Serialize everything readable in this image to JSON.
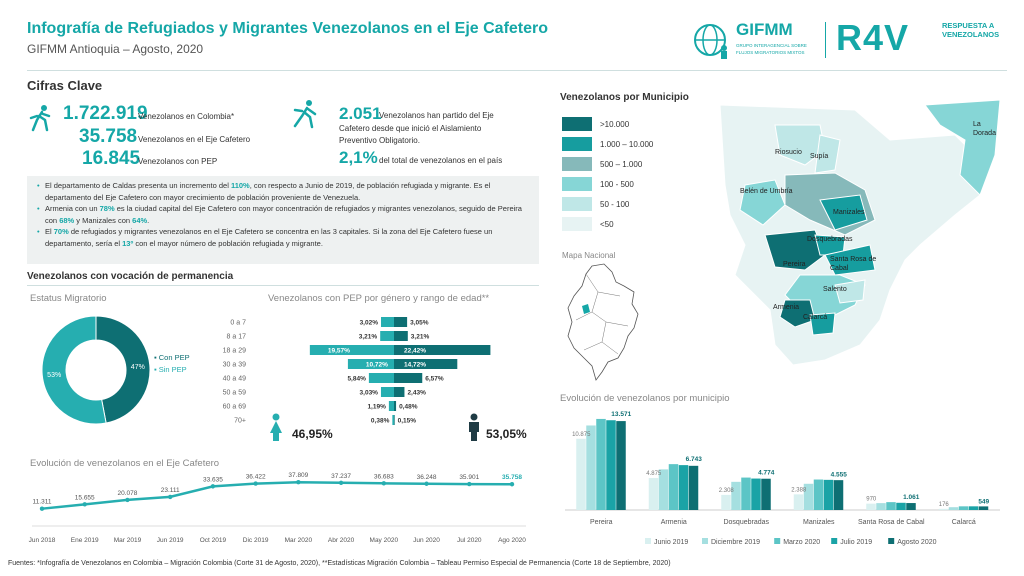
{
  "header": {
    "title": "Infografía de Refugiados y Migrantes Venezolanos en el Eje Cafetero",
    "subtitle": "GIFMM Antioquia – Agosto, 2020",
    "logo_gifmm": "GIFMM",
    "logo_gifmm_sub1": "GRUPO INTERAGENCIAL SOBRE",
    "logo_gifmm_sub2": "FLUJOS MIGRATORIOS MIXTOS",
    "logo_r4v": "R4V",
    "logo_r4v_side1": "RESPUESTA A",
    "logo_r4v_side2": "VENEZOLANOS"
  },
  "cifras": {
    "heading": "Cifras Clave",
    "colombia_value": "1.722.919",
    "colombia_label": "Venezolanos en Colombia*",
    "eje_value": "35.758",
    "eje_label": "Venezolanos en el Eje Cafetero",
    "pep_value": "16.845",
    "pep_label": "Venezolanos con PEP",
    "salida_value": "2.051",
    "salida_line1": "Venezolanos han partido del Eje",
    "salida_line2": "Cafetero desde que inició el Aislamiento",
    "salida_line3": "Preventivo Obligatorio.",
    "pct_value": "2,1%",
    "pct_label": "del total de venezolanos en el país"
  },
  "notes": {
    "n1a": "El departamento de Caldas presenta un incremento del ",
    "n1h": "110%",
    "n1b": ", con respecto a Junio de 2019, de población refugiada y migrante. Es el departamento del Eje Cafetero con mayor crecimiento de población proveniente de Venezuela.",
    "n2a": "Armenia con un ",
    "n2h1": "78%",
    "n2b": " es la ciudad capital del Eje Cafetero con mayor concentración de refugiados y migrantes venezolanos, seguido de Pereira con ",
    "n2h2": "68%",
    "n2c": " y Manizales con ",
    "n2h3": "64%",
    "n2d": ".",
    "n3a": "El ",
    "n3h1": "70%",
    "n3b": " de refugiados y migrantes venezolanos en el Eje Cafetero se concentra en las 3 capitales. Si la zona del Eje Cafetero fuese un departamento, sería el ",
    "n3h2": "13º",
    "n3c": " con el mayor número de población refugiada y migrante."
  },
  "permanencia": {
    "heading": "Venezolanos con vocación de permanencia",
    "estatus_title": "Estatus Migratorio",
    "pyramid_title": "Venezolanos con PEP por género y rango de edad**",
    "female_pct": "46,95%",
    "male_pct": "53,05%"
  },
  "map": {
    "heading": "Venezolanos por Municipio",
    "mapa_nacional": "Mapa Nacional",
    "legend": [
      {
        "label": ">10.000",
        "color": "#0e6f73"
      },
      {
        "label": "1.000 – 10.000",
        "color": "#169d9f"
      },
      {
        "label": "500 – 1.000",
        "color": "#86b9ba"
      },
      {
        "label": "100 - 500",
        "color": "#86d6d6"
      },
      {
        "label": "50 - 100",
        "color": "#bfe7e7"
      },
      {
        "label": "<50",
        "color": "#e7f3f3"
      }
    ],
    "places": [
      "La Dorada",
      "Riosucio",
      "Supía",
      "Belén de Umbría",
      "Manizales",
      "Dosquebradas",
      "Pereira",
      "Santa Rosa de Cabal",
      "Salento",
      "Armenia",
      "Calarcá"
    ]
  },
  "chart_data": [
    {
      "type": "pie",
      "title": "Estatus Migratorio",
      "categories": [
        "Con PEP",
        "Sin PEP"
      ],
      "values": [
        47,
        53
      ],
      "labels": [
        "47%",
        "53%"
      ],
      "colors": [
        "#0e6f73",
        "#26aeb0"
      ],
      "legend": "right"
    },
    {
      "type": "bar",
      "title": "Venezolanos con PEP por género y rango de edad**",
      "categories": [
        "0 a 7",
        "8 a 17",
        "18 a 29",
        "30 a 39",
        "40 a 49",
        "50 a 59",
        "60 a 69",
        "70+"
      ],
      "series": [
        {
          "values": [
            3.02,
            3.21,
            19.57,
            10.72,
            5.84,
            3.03,
            1.19,
            0.38
          ],
          "labels": [
            "3,02%",
            "3,21%",
            "19,57%",
            "10,72%",
            "5,84%",
            "3,03%",
            "1,19%",
            "0,38%"
          ],
          "color": "#26aeb0"
        },
        {
          "values": [
            3.05,
            3.21,
            22.42,
            14.72,
            6.57,
            2.43,
            0.48,
            0.15
          ],
          "labels": [
            "3,05%",
            "3,21%",
            "22,42%",
            "14,72%",
            "6,57%",
            "2,43%",
            "0,48%",
            "0,15%"
          ],
          "color": "#0e6f73"
        }
      ]
    },
    {
      "type": "line",
      "title": "Evolución de venezolanos en el Eje Cafetero",
      "categories": [
        "Jun 2018",
        "Ene 2019",
        "Mar 2019",
        "Jun 2019",
        "Oct 2019",
        "Dic 2019",
        "Mar 2020",
        "Abr 2020",
        "May 2020",
        "Jun 2020",
        "Jul 2020",
        "Ago 2020"
      ],
      "values": [
        11311,
        15655,
        20078,
        23111,
        33635,
        36422,
        37809,
        37237,
        36683,
        36248,
        35901,
        35758
      ],
      "labels": [
        "11.311",
        "15.655",
        "20.078",
        "23.111",
        "33.635",
        "36.422",
        "37.809",
        "37.237",
        "36.683",
        "36.248",
        "35.901",
        "35.758"
      ],
      "color": "#26aeb0"
    },
    {
      "type": "bar",
      "title": "Evolución de venezolanos por municipio",
      "categories": [
        "Pereira",
        "Armenia",
        "Dosquebradas",
        "Manizales",
        "Santa Rosa de Cabal",
        "Calarcá"
      ],
      "series": [
        {
          "name": "Junio 2019",
          "values": [
            10875,
            4875,
            2308,
            2388,
            970,
            176
          ],
          "color": "#d9f0f0"
        },
        {
          "name": "Diciembre 2019",
          "values": [
            12900,
            6200,
            4300,
            4000,
            1050,
            430
          ],
          "color": "#a5dfe0"
        },
        {
          "name": "Marzo 2020",
          "values": [
            13900,
            7000,
            4950,
            4650,
            1200,
            560
          ],
          "color": "#5cc5c6"
        },
        {
          "name": "Julio 2019",
          "values": [
            13700,
            6850,
            4800,
            4600,
            1100,
            560
          ],
          "color": "#1aa3a6"
        },
        {
          "name": "Agosto 2020",
          "values": [
            13571,
            6743,
            4774,
            4555,
            1061,
            549
          ],
          "color": "#0e6f73"
        }
      ],
      "top_labels": [
        "10.875",
        "4.875",
        "2.308",
        "2.388",
        "970",
        "176"
      ],
      "last_labels": [
        "13.571",
        "6.743",
        "4.774",
        "4.555",
        "1.061",
        "549"
      ],
      "legend": "bottom"
    }
  ],
  "footer": "Fuentes: *Infografía de Venezolanos en Colombia – Migración Colombia (Corte 31 de Agosto, 2020), **Estadísticas Migración Colombia – Tableau Permiso Especial de Permanencia (Corte 18 de Septiembre, 2020)"
}
